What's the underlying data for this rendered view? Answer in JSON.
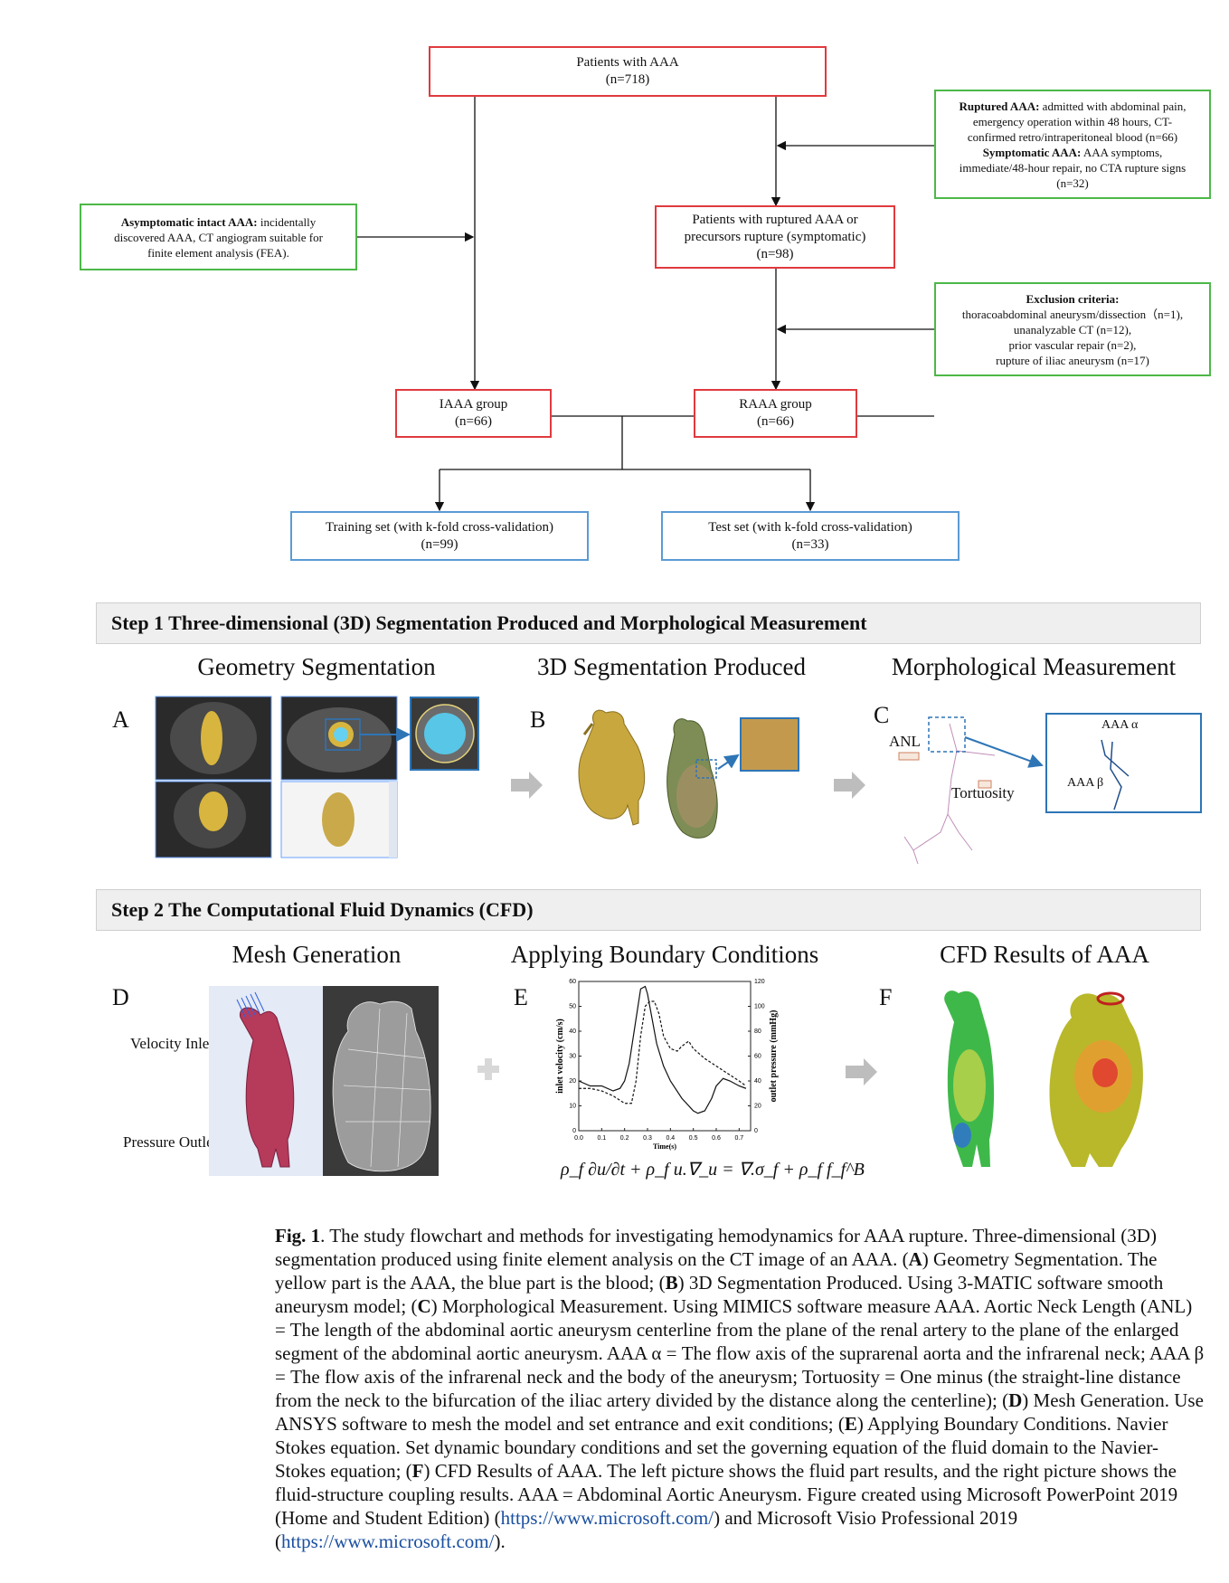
{
  "flowchart": {
    "patients": {
      "title": "Patients with AAA",
      "n": "(n=718)"
    },
    "ruptured_criteria": {
      "l1_bold": "Ruptured AAA:",
      "l1_rest": " admitted with abdominal pain,",
      "l2": "emergency operation within 48 hours, CT-",
      "l3": "confirmed retro/intraperitoneal blood (n=66)",
      "l4_bold": "Symptomatic AAA:",
      "l4_rest": " AAA symptoms,",
      "l5": "immediate/48-hour repair, no CTA rupture signs",
      "l6": "(n=32)"
    },
    "asymptomatic": {
      "l1_bold": "Asymptomatic intact AAA:",
      "l1_rest": " incidentally",
      "l2": "discovered AAA, CT angiogram suitable for",
      "l3": "finite element analysis (FEA)."
    },
    "ruptured_patients": {
      "l1": "Patients with ruptured AAA or",
      "l2": "precursors rupture (symptomatic)",
      "n": "(n=98)"
    },
    "exclusion": {
      "title": "Exclusion criteria:",
      "l1": "thoracoabdominal aneurysm/dissection（n=1),",
      "l2": "unanalyzable CT (n=12),",
      "l3": "prior vascular repair (n=2),",
      "l4": "rupture of iliac aneurysm (n=17)"
    },
    "iaaa": {
      "title": "IAAA group",
      "n": "(n=66)"
    },
    "raaa": {
      "title": "RAAA group",
      "n": "(n=66)"
    },
    "training": {
      "title": "Training set (with k-fold cross-validation)",
      "n": "(n=99)"
    },
    "test": {
      "title": "Test set (with k-fold cross-validation)",
      "n": "(n=33)"
    }
  },
  "step1": {
    "title": "Step 1 Three-dimensional (3D) Segmentation Produced and Morphological Measurement",
    "panel_titles": [
      "Geometry Segmentation",
      "3D Segmentation Produced",
      "Morphological Measurement"
    ],
    "labels": [
      "A",
      "B",
      "C"
    ],
    "anl": "ANL",
    "tortuosity": "Tortuosity",
    "aaa_alpha": "AAA α",
    "aaa_beta": "AAA β"
  },
  "step2": {
    "title": "Step 2 The Computational Fluid Dynamics (CFD)",
    "panel_titles": [
      "Mesh Generation",
      "Applying Boundary Conditions",
      "CFD Results of AAA"
    ],
    "labels": [
      "D",
      "E",
      "F"
    ],
    "velocity_inlet": "Velocity Inlet",
    "pressure_outlet": "Pressure Outlet",
    "equation": "ρ_f ∂u/∂t + ρ_f u.∇_u = ∇.σ_f + ρ_f f_f^B"
  },
  "chart_data": {
    "type": "line",
    "xlabel": "Time(s)",
    "ylabel": "inlet velocity (cm/s)",
    "y2label": "outlet pressure (mmHg)",
    "xlim": [
      0.0,
      0.75
    ],
    "ylim": [
      0,
      60
    ],
    "y2lim": [
      0,
      120
    ],
    "x_ticks": [
      "0.0",
      "0.1",
      "0.2",
      "0.3",
      "0.4",
      "0.5",
      "0.6",
      "0.7"
    ],
    "y_ticks": [
      "0",
      "10",
      "20",
      "30",
      "40",
      "50",
      "60"
    ],
    "y2_ticks": [
      "0",
      "20",
      "40",
      "60",
      "80",
      "100",
      "120"
    ],
    "series": [
      {
        "style": "solid",
        "axis": "left",
        "x": [
          0.0,
          0.05,
          0.1,
          0.15,
          0.18,
          0.2,
          0.22,
          0.25,
          0.27,
          0.29,
          0.3,
          0.32,
          0.34,
          0.37,
          0.4,
          0.45,
          0.5,
          0.52,
          0.55,
          0.58,
          0.6,
          0.63,
          0.66,
          0.7,
          0.73
        ],
        "y": [
          20,
          18,
          18,
          16,
          17,
          20,
          27,
          45,
          57,
          58,
          55,
          45,
          35,
          26,
          20,
          13,
          8,
          7,
          8,
          13,
          18,
          21,
          20,
          18,
          17
        ]
      },
      {
        "style": "dashed",
        "axis": "left",
        "x": [
          0.0,
          0.05,
          0.1,
          0.15,
          0.2,
          0.23,
          0.25,
          0.27,
          0.29,
          0.31,
          0.33,
          0.35,
          0.37,
          0.4,
          0.43,
          0.45,
          0.48,
          0.5,
          0.55,
          0.6,
          0.65,
          0.7,
          0.73
        ],
        "y": [
          17,
          17,
          16,
          14,
          11,
          11,
          20,
          38,
          50,
          52,
          52,
          47,
          38,
          33,
          32,
          34,
          36,
          33,
          29,
          26,
          23,
          20,
          18
        ]
      }
    ]
  },
  "caption": {
    "fig": "Fig. 1",
    "text1": ".  The study flowchart and methods for investigating hemodynamics for AAA rupture. Three-dimensional (3D) segmentation produced using finite element analysis on the CT image of an AAA. (",
    "a": "A",
    "text2": ") Geometry Segmentation. The yellow part is the AAA, the blue part is the blood; (",
    "b": "B",
    "text3": ") 3D Segmentation Produced. Using 3-MATIC software smooth aneurysm model; (",
    "c": "C",
    "text4": ") Morphological Measurement. Using MIMICS software measure AAA. Aortic Neck Length (ANL) = The length of the abdominal aortic aneurysm centerline from the plane of the renal artery to the plane of the enlarged segment of the abdominal aortic aneurysm. AAA α = The flow axis of the suprarenal aorta and the infrarenal neck; AAA β = The flow axis of the infrarenal neck and the body of the aneurysm; Tortuosity = One minus (the straight-line distance from the neck to the bifurcation of the iliac artery divided by the distance along the centerline); (",
    "d": "D",
    "text5": ") Mesh Generation. Use ANSYS software to mesh the model and set entrance and exit conditions; (",
    "e": "E",
    "text6": ") Applying Boundary Conditions. Navier Stokes equation. Set dynamic boundary conditions and set the governing equation of the fluid domain to the Navier-Stokes equation; (",
    "f": "F",
    "text7": ") CFD Results of AAA. The left picture shows the fluid part results, and the right picture shows the fluid-structure coupling results. AAA = Abdominal Aortic Aneurysm. Figure created using Microsoft PowerPoint 2019 (Home and Student Edition) (",
    "link1": "https://www.microsoft.com/",
    "text8": ") and Microsoft Visio Professional 2019 (",
    "link2": "https://www.microsoft.com/",
    "text9": ")."
  }
}
